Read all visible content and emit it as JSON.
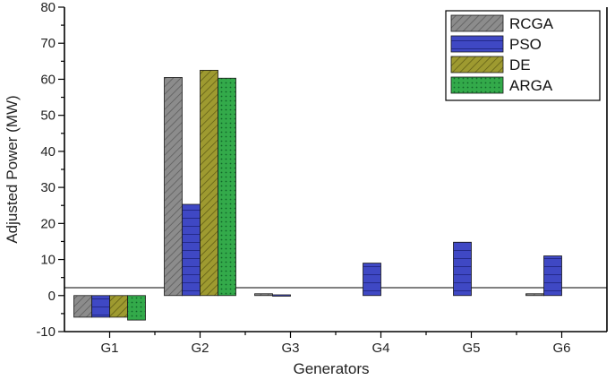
{
  "chart_data": {
    "type": "bar",
    "title": "",
    "xlabel": "Generators",
    "ylabel": "Adjusted Power (MW)",
    "ylim": [
      -10,
      80
    ],
    "yticks": [
      -10,
      0,
      10,
      20,
      30,
      40,
      50,
      60,
      70,
      80
    ],
    "categories": [
      "G1",
      "G2",
      "G3",
      "G4",
      "G5",
      "G6"
    ],
    "legend_position": "top-right",
    "grid": false,
    "series": [
      {
        "name": "RCGA",
        "color": "#8c8c8c",
        "pattern": "diagonal-hatch",
        "values": [
          -6,
          60.5,
          0.5,
          0,
          0,
          0.5
        ]
      },
      {
        "name": "PSO",
        "color": "#3f48c4",
        "pattern": "horizontal-lines",
        "values": [
          -6,
          25.3,
          0.2,
          9,
          14.8,
          11
        ]
      },
      {
        "name": "DE",
        "color": "#9e9a30",
        "pattern": "diagonal-hatch",
        "values": [
          -6,
          62.5,
          0,
          0,
          0,
          0
        ]
      },
      {
        "name": "ARGA",
        "color": "#33aa4a",
        "pattern": "cross-dots",
        "values": [
          -6.8,
          60.3,
          0,
          0,
          0,
          0
        ]
      }
    ]
  }
}
